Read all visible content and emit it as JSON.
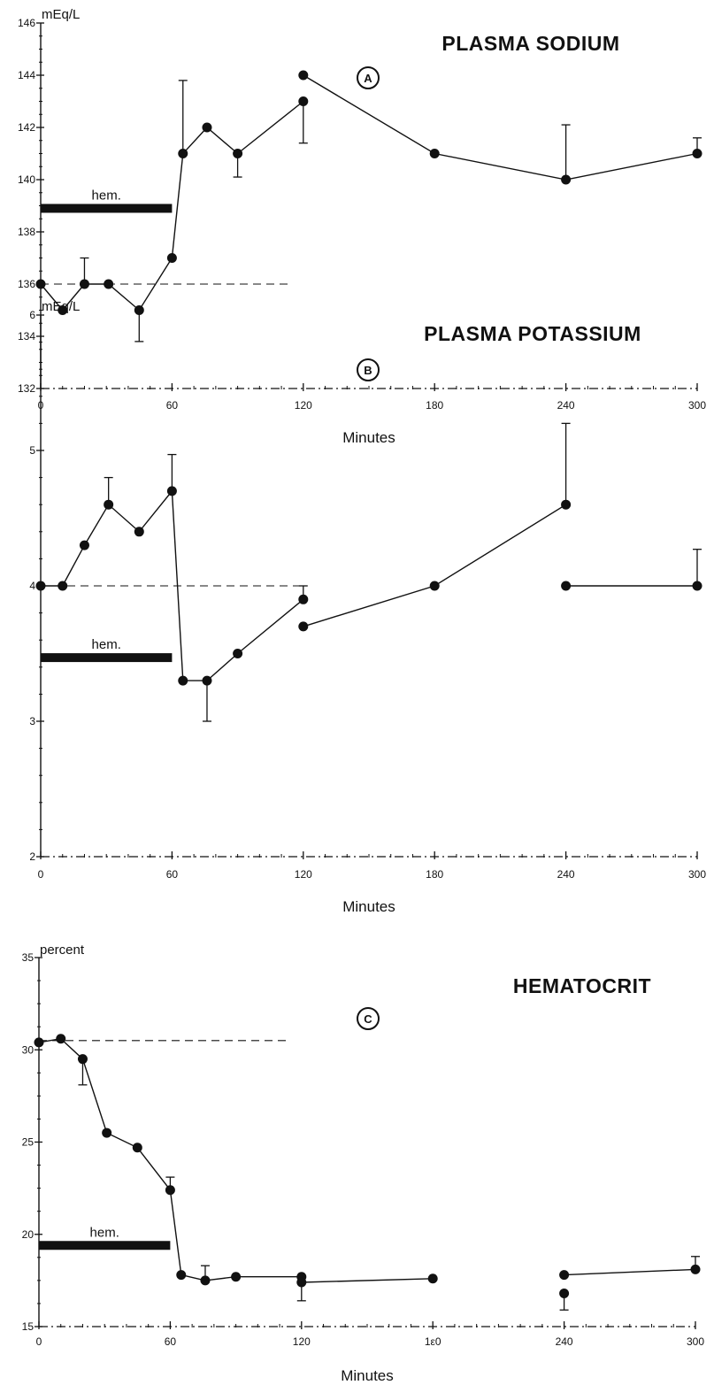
{
  "chart_data": [
    {
      "type": "line",
      "title": "PLASMA SODIUM",
      "panel_marker": "A",
      "unit_label": "mEq/L",
      "xlabel": "Minutes",
      "xlim": [
        0,
        300
      ],
      "ylim": [
        132,
        146
      ],
      "x_ticks": [
        0,
        60,
        120,
        180,
        240,
        300
      ],
      "y_ticks": [
        132,
        134,
        136,
        138,
        140,
        142,
        144,
        146
      ],
      "baseline": {
        "y": 136,
        "x_range": [
          0,
          113
        ],
        "style": "dashed"
      },
      "hem_bar": {
        "label": "hem.",
        "x_range": [
          0,
          60
        ],
        "y": 138.9
      },
      "series": [
        {
          "points": [
            [
              0,
              136
            ],
            [
              10,
              135
            ],
            [
              20,
              136
            ],
            [
              31,
              136
            ],
            [
              45,
              135
            ],
            [
              60,
              137
            ],
            [
              65,
              141
            ],
            [
              76,
              142
            ],
            [
              90,
              141
            ],
            [
              120,
              143
            ]
          ]
        },
        {
          "points": [
            [
              120,
              144
            ],
            [
              180,
              141
            ],
            [
              240,
              140
            ],
            [
              300,
              141
            ]
          ]
        }
      ],
      "error_bars": [
        {
          "x": 20,
          "y": 136,
          "high": 137
        },
        {
          "x": 45,
          "y": 135,
          "low": 133.8
        },
        {
          "x": 65,
          "y": 141,
          "high": 143.8
        },
        {
          "x": 90,
          "y": 141,
          "low": 140.1
        },
        {
          "x": 120,
          "y": 143,
          "low": 141.4
        },
        {
          "x": 240,
          "y": 140,
          "high": 142.1
        },
        {
          "x": 300,
          "y": 141,
          "high": 141.6
        }
      ]
    },
    {
      "type": "line",
      "title": "PLASMA POTASSIUM",
      "panel_marker": "B",
      "unit_label": "mEq/L",
      "xlabel": "Minutes",
      "xlim": [
        0,
        300
      ],
      "ylim": [
        2,
        6
      ],
      "x_ticks": [
        0,
        60,
        120,
        180,
        240,
        300
      ],
      "y_ticks": [
        2,
        3,
        4,
        5,
        6
      ],
      "baseline": {
        "y": 4,
        "x_range": [
          0,
          120
        ],
        "style": "dashed"
      },
      "hem_bar": {
        "label": "hem.",
        "x_range": [
          0,
          60
        ],
        "y": 3.47
      },
      "series": [
        {
          "points": [
            [
              0,
              4.0
            ],
            [
              10,
              4.0
            ],
            [
              20,
              4.3
            ],
            [
              31,
              4.6
            ],
            [
              45,
              4.4
            ],
            [
              60,
              4.7
            ],
            [
              65,
              3.3
            ],
            [
              76,
              3.3
            ],
            [
              90,
              3.5
            ],
            [
              120,
              3.9
            ]
          ]
        },
        {
          "points": [
            [
              120,
              3.7
            ],
            [
              180,
              4.0
            ],
            [
              240,
              4.6
            ]
          ]
        },
        {
          "points": [
            [
              240,
              4.0
            ],
            [
              300,
              4.0
            ]
          ]
        }
      ],
      "error_bars": [
        {
          "x": 31,
          "y": 4.6,
          "high": 4.8
        },
        {
          "x": 60,
          "y": 4.7,
          "high": 4.97
        },
        {
          "x": 76,
          "y": 3.3,
          "low": 3.0
        },
        {
          "x": 120,
          "y": 3.9,
          "high": 4.0
        },
        {
          "x": 240,
          "y": 4.6,
          "high": 5.2
        },
        {
          "x": 300,
          "y": 4.0,
          "high": 4.27
        }
      ]
    },
    {
      "type": "line",
      "title": "HEMATOCRIT",
      "panel_marker": "C",
      "unit_label": "percent",
      "xlabel": "Minutes",
      "xlim": [
        0,
        300
      ],
      "ylim": [
        15,
        35
      ],
      "x_ticks": [
        0,
        60,
        120,
        180,
        240,
        300
      ],
      "x_tick_labels": [
        "0",
        "60",
        "120",
        "1ε0",
        "240",
        "300"
      ],
      "y_ticks": [
        15,
        20,
        25,
        30,
        35
      ],
      "baseline": {
        "y": 30.5,
        "x_range": [
          0,
          113
        ],
        "style": "dashed"
      },
      "hem_bar": {
        "label": "hem.",
        "x_range": [
          0,
          60
        ],
        "y": 19.4
      },
      "series": [
        {
          "points": [
            [
              0,
              30.4
            ],
            [
              10,
              30.6
            ],
            [
              20,
              29.5
            ],
            [
              31,
              25.5
            ],
            [
              45,
              24.7
            ],
            [
              60,
              22.4
            ],
            [
              65,
              17.8
            ],
            [
              76,
              17.5
            ],
            [
              90,
              17.7
            ],
            [
              120,
              17.7
            ]
          ]
        },
        {
          "points": [
            [
              120,
              17.4
            ],
            [
              180,
              17.6
            ]
          ]
        },
        {
          "points": [
            [
              240,
              17.8
            ],
            [
              300,
              18.1
            ]
          ]
        },
        {
          "points": [
            [
              240,
              16.8
            ]
          ]
        }
      ],
      "error_bars": [
        {
          "x": 20,
          "y": 29.5,
          "low": 28.1
        },
        {
          "x": 60,
          "y": 22.4,
          "high": 23.1
        },
        {
          "x": 76,
          "y": 17.5,
          "high": 18.3
        },
        {
          "x": 120,
          "y": 17.4,
          "low": 16.4
        },
        {
          "x": 240,
          "y": 16.8,
          "low": 15.9
        },
        {
          "x": 300,
          "y": 18.1,
          "high": 18.8
        }
      ]
    }
  ]
}
